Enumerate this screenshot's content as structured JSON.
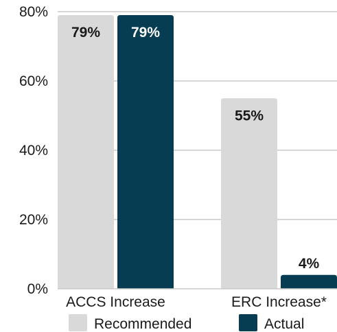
{
  "chart_data": {
    "type": "bar",
    "categories": [
      "ACCS Increase",
      "ERC Increase*"
    ],
    "series": [
      {
        "name": "Recommended",
        "values": [
          79,
          55
        ],
        "labels": [
          "79%",
          "55%"
        ],
        "color": "#d9d9d9",
        "label_color": "#1a1a1a"
      },
      {
        "name": "Actual",
        "values": [
          79,
          4
        ],
        "labels": [
          "79%",
          "4%"
        ],
        "color": "#063d52",
        "label_color": "#ffffff"
      }
    ],
    "yticks": [
      0,
      20,
      40,
      60,
      80
    ],
    "ytick_labels": [
      "0%",
      "20%",
      "40%",
      "60%",
      "80%"
    ],
    "ylim": [
      0,
      80
    ],
    "grid": true,
    "legend": "bottom",
    "title": "",
    "xlabel": "",
    "ylabel": ""
  }
}
